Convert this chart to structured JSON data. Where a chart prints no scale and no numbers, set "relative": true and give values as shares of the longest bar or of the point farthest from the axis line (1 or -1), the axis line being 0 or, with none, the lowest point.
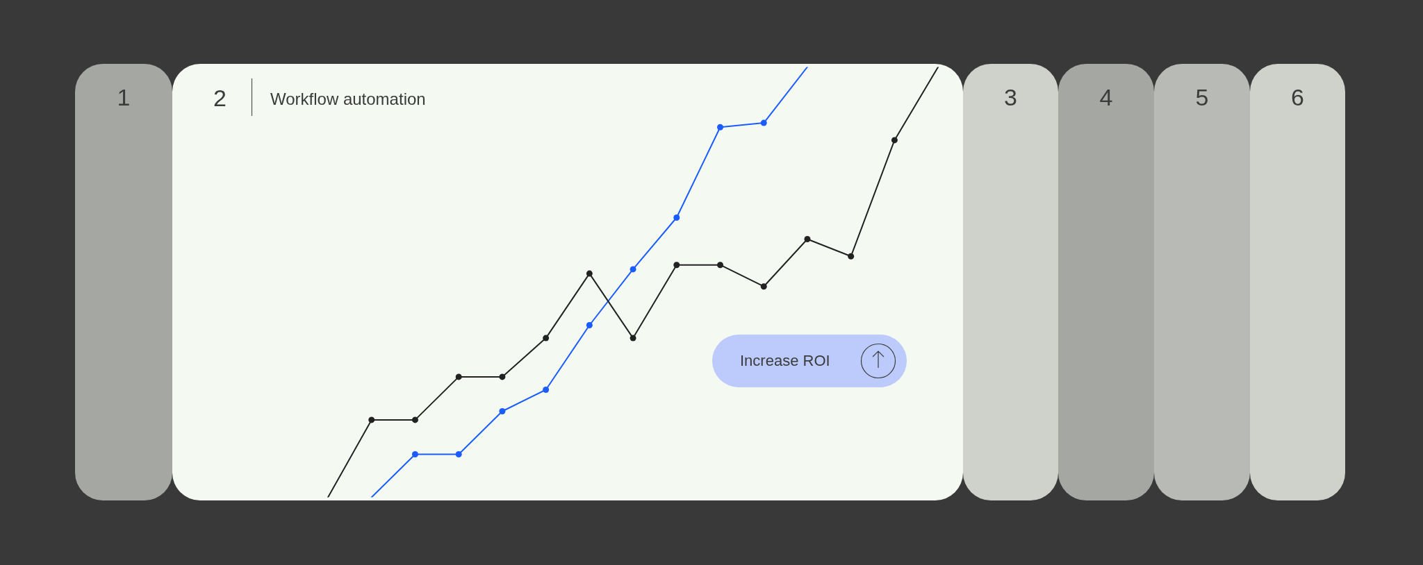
{
  "chart_data": {
    "type": "line",
    "title": "Workflow automation",
    "annotations": [
      "1",
      "2",
      "3",
      "4",
      "5",
      "6",
      "Increase ROI"
    ],
    "relative": true,
    "tick_labels": false,
    "marker": "circle",
    "line_style": "solid",
    "categories": [
      null,
      null,
      null,
      null,
      null,
      null,
      null,
      null,
      null,
      null,
      null,
      null,
      null,
      null,
      null,
      null,
      null,
      null
    ],
    "series": [
      {
        "color": "#222222",
        "values": [
          null,
          null,
          null,
          0,
          0.18,
          0.18,
          0.28,
          0.28,
          0.37,
          0.52,
          0.37,
          0.54,
          0.54,
          0.49,
          0.6,
          0.56,
          0.83,
          1
        ]
      },
      {
        "color": "#1a5cff",
        "values": [
          null,
          null,
          null,
          null,
          0,
          0.1,
          0.1,
          0.2,
          0.25,
          0.4,
          0.53,
          0.65,
          0.86,
          0.87,
          1,
          null,
          null,
          null
        ]
      }
    ]
  }
}
